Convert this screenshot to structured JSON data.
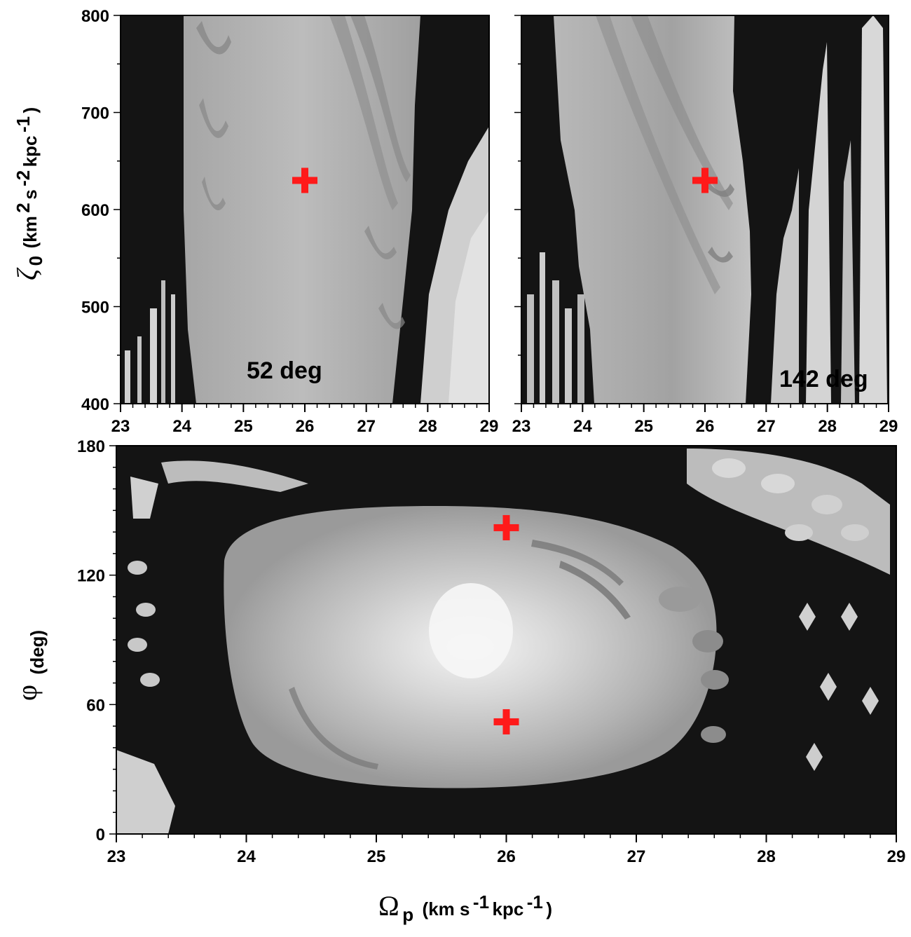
{
  "chart_data": [
    {
      "type": "heatmap",
      "panel_label": "52 deg",
      "xlim": [
        23,
        29
      ],
      "ylim": [
        400,
        800
      ],
      "x_ticks": [
        23,
        24,
        25,
        26,
        27,
        28,
        29
      ],
      "y_ticks": [
        400,
        500,
        600,
        700,
        800
      ],
      "ylabel": {
        "symbol": "ζ",
        "sub": "0",
        "unit_open": "(km",
        "sup1": "2",
        "mid1": "s",
        "sup2": "-2",
        "mid2": "kpc",
        "sup3": "-1",
        "unit_close": ")"
      },
      "grid": false,
      "markers": [
        {
          "x": 26.0,
          "y": 630,
          "color": "#ff1a1a"
        }
      ]
    },
    {
      "type": "heatmap",
      "panel_label": "142 deg",
      "xlim": [
        23,
        29
      ],
      "ylim": [
        400,
        800
      ],
      "x_ticks": [
        23,
        24,
        25,
        26,
        27,
        28,
        29
      ],
      "grid": false,
      "markers": [
        {
          "x": 26.0,
          "y": 630,
          "color": "#ff1a1a"
        }
      ]
    },
    {
      "type": "heatmap",
      "xlim": [
        23,
        29
      ],
      "ylim": [
        0,
        180
      ],
      "x_ticks": [
        23,
        24,
        25,
        26,
        27,
        28,
        29
      ],
      "y_ticks": [
        0,
        60,
        120,
        180
      ],
      "ylabel": {
        "symbol": "φ",
        "unit": "(deg)"
      },
      "xlabel": {
        "symbol": "Ω",
        "sub": "p",
        "unit_open": "(km s",
        "sup1": "-1",
        "mid1": "kpc",
        "sup2": "-1",
        "unit_close": ")"
      },
      "grid": false,
      "markers": [
        {
          "x": 26.0,
          "y": 142,
          "color": "#ff1a1a"
        },
        {
          "x": 26.0,
          "y": 52,
          "color": "#ff1a1a"
        }
      ]
    }
  ],
  "colors": {
    "chaotic": "#141414",
    "regular_dark": "#8c8c8c",
    "regular_mid": "#a8a8a8",
    "regular_light": "#d6d6d6",
    "marker": "#ff1a1a"
  }
}
